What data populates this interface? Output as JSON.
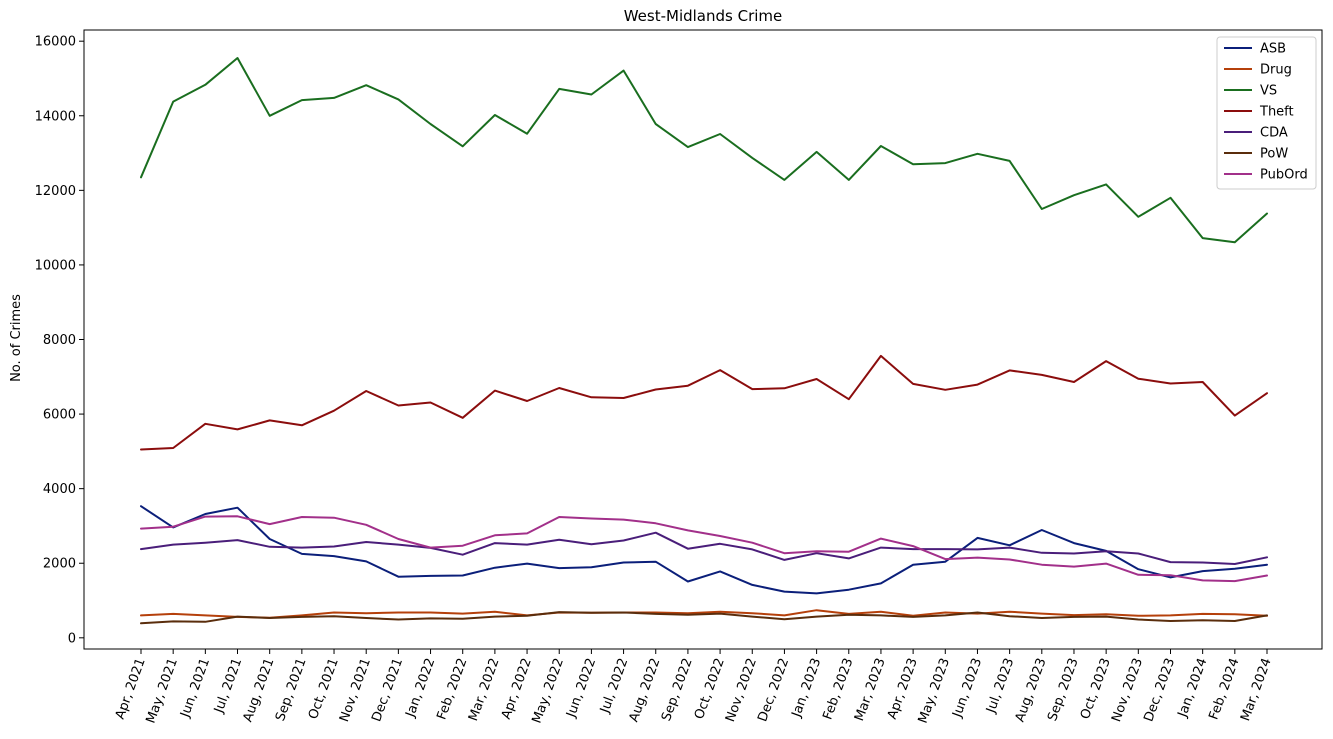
{
  "chart_data": {
    "type": "line",
    "title": "West-Midlands Crime",
    "xlabel": "",
    "ylabel": "No. of Crimes",
    "ylim": [
      -300,
      16300
    ],
    "yticks": [
      0,
      2000,
      4000,
      6000,
      8000,
      10000,
      12000,
      14000,
      16000
    ],
    "grid": false,
    "legend_position": "top-right",
    "categories": [
      "Apr, 2021",
      "May, 2021",
      "Jun, 2021",
      "Jul, 2021",
      "Aug, 2021",
      "Sep, 2021",
      "Oct, 2021",
      "Nov, 2021",
      "Dec, 2021",
      "Jan, 2022",
      "Feb, 2022",
      "Mar, 2022",
      "Apr, 2022",
      "May, 2022",
      "Jun, 2022",
      "Jul, 2022",
      "Aug, 2022",
      "Sep, 2022",
      "Oct, 2022",
      "Nov, 2022",
      "Dec, 2022",
      "Jan, 2023",
      "Feb, 2023",
      "Mar, 2023",
      "Apr, 2023",
      "May, 2023",
      "Jun, 2023",
      "Jul, 2023",
      "Aug, 2023",
      "Sep, 2023",
      "Oct, 2023",
      "Nov, 2023",
      "Dec, 2023",
      "Jan, 2024",
      "Feb, 2024",
      "Mar, 2024"
    ],
    "series": [
      {
        "name": "ASB",
        "color": "#0b1f7a",
        "values": [
          3530,
          2960,
          3320,
          3490,
          2650,
          2250,
          2190,
          2050,
          1640,
          1660,
          1670,
          1880,
          1990,
          1870,
          1890,
          2020,
          2040,
          1510,
          1780,
          1420,
          1240,
          1190,
          1290,
          1460,
          1960,
          2040,
          2680,
          2480,
          2890,
          2540,
          2330,
          1840,
          1620,
          1790,
          1850,
          1960
        ]
      },
      {
        "name": "Drug",
        "color": "#b5400b",
        "values": [
          600,
          640,
          600,
          560,
          540,
          600,
          680,
          660,
          680,
          680,
          650,
          700,
          600,
          680,
          670,
          680,
          680,
          660,
          700,
          660,
          600,
          740,
          640,
          700,
          590,
          680,
          650,
          700,
          650,
          610,
          630,
          590,
          600,
          640,
          630,
          590
        ]
      },
      {
        "name": "VS",
        "color": "#1a6e1f",
        "values": [
          12350,
          14380,
          14830,
          15550,
          14000,
          14420,
          14480,
          14820,
          14440,
          13780,
          13180,
          14020,
          13520,
          14720,
          14570,
          15210,
          13780,
          13160,
          13510,
          12870,
          12280,
          13030,
          12280,
          13190,
          12700,
          12730,
          12980,
          12790,
          11500,
          11870,
          12160,
          11290,
          11800,
          10720,
          10610,
          11380
        ]
      },
      {
        "name": "Theft",
        "color": "#8b0d0d",
        "values": [
          5050,
          5090,
          5740,
          5590,
          5830,
          5700,
          6090,
          6620,
          6230,
          6310,
          5900,
          6630,
          6350,
          6700,
          6450,
          6430,
          6660,
          6760,
          7180,
          6670,
          6690,
          6940,
          6400,
          7560,
          6810,
          6650,
          6790,
          7170,
          7050,
          6860,
          7420,
          6950,
          6820,
          6860,
          5960,
          6560
        ]
      },
      {
        "name": "CDA",
        "color": "#4a1e7a",
        "values": [
          2380,
          2500,
          2550,
          2620,
          2440,
          2420,
          2450,
          2570,
          2500,
          2410,
          2230,
          2540,
          2500,
          2630,
          2510,
          2610,
          2820,
          2390,
          2520,
          2370,
          2090,
          2270,
          2130,
          2420,
          2380,
          2380,
          2370,
          2420,
          2280,
          2260,
          2320,
          2260,
          2030,
          2020,
          1980,
          2160
        ]
      },
      {
        "name": "PoW",
        "color": "#5a2d0c",
        "values": [
          390,
          440,
          430,
          570,
          530,
          560,
          580,
          530,
          490,
          520,
          510,
          570,
          590,
          690,
          670,
          680,
          640,
          620,
          650,
          570,
          500,
          570,
          620,
          600,
          560,
          600,
          680,
          580,
          530,
          560,
          570,
          490,
          450,
          470,
          450,
          600
        ]
      },
      {
        "name": "PubOrd",
        "color": "#a2308a",
        "values": [
          2930,
          2980,
          3250,
          3260,
          3050,
          3240,
          3220,
          3030,
          2650,
          2420,
          2470,
          2750,
          2800,
          3240,
          3200,
          3170,
          3070,
          2880,
          2730,
          2550,
          2270,
          2320,
          2310,
          2660,
          2460,
          2110,
          2150,
          2100,
          1960,
          1910,
          1990,
          1690,
          1680,
          1540,
          1520,
          1670
        ]
      }
    ]
  }
}
